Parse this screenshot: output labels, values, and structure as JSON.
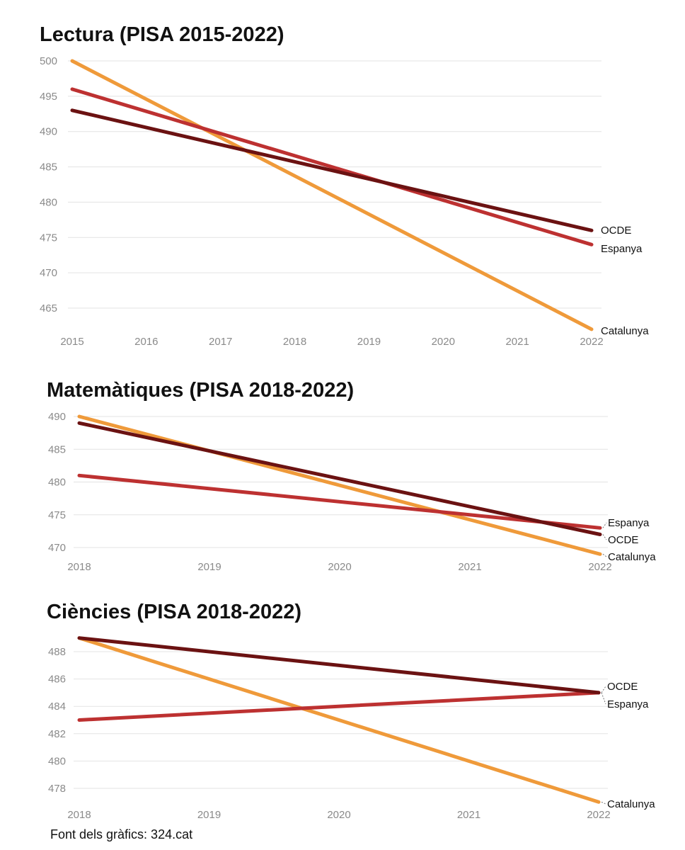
{
  "colors": {
    "Catalunya": "#ef9a3a",
    "Espanya": "#bd3131",
    "OCDE": "#6b1212"
  },
  "chart_data": [
    {
      "type": "line",
      "title": "Lectura (PISA 2015-2022)",
      "x": [
        "2015",
        "2016",
        "2017",
        "2018",
        "2019",
        "2020",
        "2021",
        "2022"
      ],
      "xlabel": "",
      "ylabel": "",
      "ylim": [
        462,
        500
      ],
      "yticks": [
        500,
        495,
        490,
        485,
        480,
        475,
        470,
        465
      ],
      "grid": true,
      "series": [
        {
          "name": "Catalunya",
          "x": [
            2015,
            2022
          ],
          "values": [
            500,
            462
          ]
        },
        {
          "name": "Espanya",
          "x": [
            2015,
            2022
          ],
          "values": [
            496,
            474
          ]
        },
        {
          "name": "OCDE",
          "x": [
            2015,
            2022
          ],
          "values": [
            493,
            476
          ]
        }
      ]
    },
    {
      "type": "line",
      "title": "Matemàtiques (PISA 2018-2022)",
      "x": [
        "2018",
        "2019",
        "2020",
        "2021",
        "2022"
      ],
      "xlabel": "",
      "ylabel": "",
      "ylim": [
        469,
        490
      ],
      "yticks": [
        490,
        485,
        480,
        475,
        470
      ],
      "grid": true,
      "series": [
        {
          "name": "Catalunya",
          "x": [
            2018,
            2022
          ],
          "values": [
            490,
            469
          ]
        },
        {
          "name": "Espanya",
          "x": [
            2018,
            2022
          ],
          "values": [
            481,
            473
          ]
        },
        {
          "name": "OCDE",
          "x": [
            2018,
            2022
          ],
          "values": [
            489,
            472
          ]
        }
      ]
    },
    {
      "type": "line",
      "title": "Ciències (PISA 2018-2022)",
      "x": [
        "2018",
        "2019",
        "2020",
        "2021",
        "2022"
      ],
      "xlabel": "",
      "ylabel": "",
      "ylim": [
        477,
        489
      ],
      "yticks": [
        488,
        486,
        484,
        482,
        480,
        478
      ],
      "grid": true,
      "series": [
        {
          "name": "Catalunya",
          "x": [
            2018,
            2022
          ],
          "values": [
            489,
            477
          ]
        },
        {
          "name": "Espanya",
          "x": [
            2018,
            2022
          ],
          "values": [
            483,
            485
          ]
        },
        {
          "name": "OCDE",
          "x": [
            2018,
            2022
          ],
          "values": [
            489,
            485
          ]
        }
      ]
    }
  ],
  "source": "Font dels gràfics: 324.cat"
}
